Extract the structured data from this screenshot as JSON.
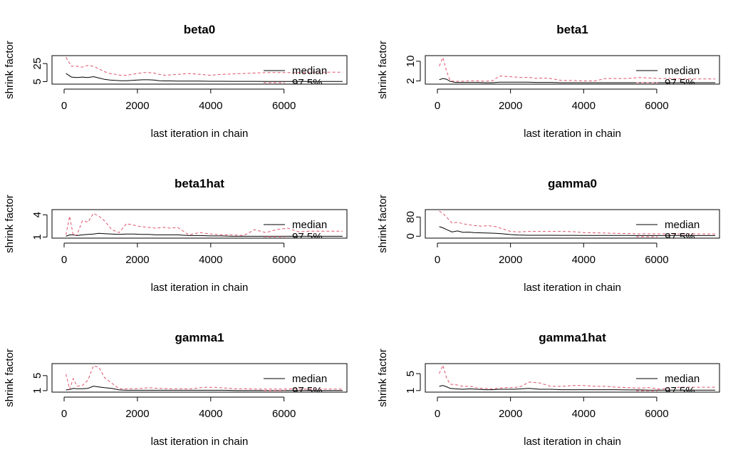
{
  "chart_data": [
    {
      "type": "line",
      "title": "beta0",
      "xlabel": "last iteration in chain",
      "ylabel": "shrink factor",
      "xlim": [
        0,
        7600
      ],
      "ylim": [
        3,
        33
      ],
      "x_ticks": [
        0,
        2000,
        4000,
        6000
      ],
      "y_ticks": [
        5,
        25
      ],
      "legend": {
        "placement": "right",
        "entries": [
          "median",
          "97.5%"
        ]
      },
      "grid": false,
      "series": [
        {
          "name": "median",
          "color": "#000000",
          "dash": "solid",
          "x": [
            50,
            200,
            350,
            500,
            650,
            800,
            950,
            1100,
            1250,
            1400,
            1550,
            1700,
            1850,
            2000,
            2150,
            2300,
            2450,
            2600,
            2750,
            2900,
            3100,
            3400,
            3700,
            4000,
            4300,
            4600,
            4900,
            5200,
            5500,
            5800,
            6100,
            6400,
            6700,
            7000,
            7300,
            7600
          ],
          "y": [
            14,
            10,
            9.5,
            10,
            9.5,
            10.5,
            9,
            7.5,
            6.8,
            6.3,
            6,
            6,
            6.3,
            6.8,
            7,
            7,
            6.8,
            6,
            5.8,
            5.8,
            5.6,
            5.5,
            5.5,
            5.4,
            5.4,
            5.3,
            5.3,
            5.3,
            5.2,
            5.2,
            5.2,
            5.2,
            5.2,
            5.2,
            5.1,
            5.1
          ]
        },
        {
          "name": "97.5%",
          "color": "#DF536B",
          "dash": "dashed",
          "x": [
            50,
            200,
            350,
            500,
            650,
            800,
            950,
            1100,
            1250,
            1400,
            1550,
            1700,
            1850,
            2000,
            2150,
            2300,
            2450,
            2600,
            2750,
            2900,
            3100,
            3400,
            3700,
            4000,
            4300,
            4600,
            4900,
            5200,
            5500,
            5800,
            6100,
            6400,
            6700,
            7000,
            7300,
            7600
          ],
          "y": [
            32,
            22,
            22,
            21,
            23,
            22,
            19,
            16,
            14,
            13,
            12,
            12,
            13,
            14,
            15,
            15,
            14.5,
            13,
            12,
            12.5,
            13,
            14,
            13,
            12,
            13,
            13.5,
            14,
            14.5,
            15,
            15,
            15,
            15,
            15.5,
            15.5,
            15.5,
            15.5
          ]
        }
      ]
    },
    {
      "type": "line",
      "title": "beta1",
      "xlabel": "last iteration in chain",
      "ylabel": "shrink factor",
      "xlim": [
        0,
        7600
      ],
      "ylim": [
        1,
        12
      ],
      "x_ticks": [
        0,
        2000,
        4000,
        6000
      ],
      "y_ticks": [
        2,
        10
      ],
      "legend": {
        "placement": "right",
        "entries": [
          "median",
          "97.5%"
        ]
      },
      "grid": false,
      "series": [
        {
          "name": "median",
          "color": "#000000",
          "dash": "solid",
          "x": [
            50,
            150,
            250,
            350,
            500,
            700,
            900,
            1100,
            1300,
            1500,
            1700,
            1900,
            2100,
            2300,
            2500,
            2700,
            2900,
            3100,
            3400,
            3700,
            4000,
            4300,
            4600,
            4900,
            5200,
            5500,
            5800,
            6100,
            6400,
            6700,
            7000,
            7300,
            7600
          ],
          "y": [
            2.5,
            3,
            2.7,
            1.8,
            1.4,
            1.4,
            1.4,
            1.4,
            1.3,
            1.3,
            1.5,
            1.5,
            1.5,
            1.5,
            1.5,
            1.4,
            1.4,
            1.4,
            1.3,
            1.3,
            1.3,
            1.3,
            1.3,
            1.3,
            1.3,
            1.3,
            1.3,
            1.3,
            1.3,
            1.3,
            1.3,
            1.3,
            1.3
          ]
        },
        {
          "name": "97.5%",
          "color": "#DF536B",
          "dash": "dashed",
          "x": [
            50,
            150,
            250,
            350,
            500,
            700,
            900,
            1100,
            1300,
            1500,
            1700,
            1900,
            2100,
            2300,
            2500,
            2700,
            2900,
            3100,
            3400,
            3700,
            4000,
            4300,
            4600,
            4900,
            5200,
            5500,
            5800,
            6100,
            6400,
            6700,
            7000,
            7300,
            7600
          ],
          "y": [
            8,
            11.5,
            6,
            2,
            1.8,
            1.9,
            2,
            2,
            1.9,
            2,
            4,
            3.8,
            3.6,
            3.4,
            3.5,
            3,
            3.2,
            3,
            2.2,
            2.2,
            2,
            2,
            3,
            3,
            3,
            3.4,
            3.2,
            3,
            3,
            2.8,
            2.8,
            2.8,
            2.8
          ]
        }
      ]
    },
    {
      "type": "line",
      "title": "beta1hat",
      "xlabel": "last iteration in chain",
      "ylabel": "shrink factor",
      "xlim": [
        0,
        7600
      ],
      "ylim": [
        0.95,
        4.6
      ],
      "x_ticks": [
        0,
        2000,
        4000,
        6000
      ],
      "y_ticks": [
        1.0,
        4.0
      ],
      "legend": {
        "placement": "right",
        "entries": [
          "median",
          "97.5%"
        ]
      },
      "grid": false,
      "series": [
        {
          "name": "median",
          "color": "#000000",
          "dash": "solid",
          "x": [
            50,
            150,
            250,
            350,
            500,
            650,
            800,
            950,
            1100,
            1300,
            1500,
            1700,
            1900,
            2100,
            2300,
            2500,
            2700,
            2900,
            3100,
            3400,
            3700,
            4000,
            4300,
            4600,
            4900,
            5200,
            5500,
            5800,
            6100,
            6400,
            6700,
            7000,
            7300,
            7600
          ],
          "y": [
            1.1,
            1.3,
            1.3,
            1.2,
            1.3,
            1.35,
            1.4,
            1.5,
            1.45,
            1.4,
            1.35,
            1.4,
            1.4,
            1.35,
            1.35,
            1.3,
            1.3,
            1.3,
            1.3,
            1.2,
            1.2,
            1.15,
            1.15,
            1.1,
            1.1,
            1.1,
            1.1,
            1.1,
            1.1,
            1.1,
            1.1,
            1.1,
            1.1,
            1.1
          ]
        },
        {
          "name": "97.5%",
          "color": "#DF536B",
          "dash": "dashed",
          "x": [
            50,
            150,
            250,
            350,
            500,
            650,
            800,
            950,
            1100,
            1300,
            1500,
            1700,
            1900,
            2100,
            2300,
            2500,
            2700,
            2900,
            3100,
            3400,
            3700,
            4000,
            4300,
            4600,
            4900,
            5200,
            5500,
            5800,
            6100,
            6400,
            6700,
            7000,
            7300,
            7600
          ],
          "y": [
            1.3,
            3.8,
            1.2,
            1.3,
            3.2,
            3,
            4.2,
            3.8,
            3.2,
            2,
            1.6,
            2.8,
            2.6,
            2.4,
            2.3,
            2.2,
            2.3,
            2.2,
            2.3,
            1.3,
            1.6,
            1.4,
            1.3,
            1.3,
            1.2,
            2,
            1.6,
            2,
            2.2,
            1.7,
            1.8,
            1.8,
            1.8,
            1.8
          ]
        }
      ]
    },
    {
      "type": "line",
      "title": "gamma0",
      "xlabel": "last iteration in chain",
      "ylabel": "shrink factor",
      "xlim": [
        0,
        7600
      ],
      "ylim": [
        -5,
        108
      ],
      "x_ticks": [
        0,
        2000,
        4000,
        6000
      ],
      "y_ticks": [
        0,
        80
      ],
      "legend": {
        "placement": "right",
        "entries": [
          "median",
          "97.5%"
        ]
      },
      "grid": false,
      "series": [
        {
          "name": "median",
          "color": "#000000",
          "dash": "solid",
          "x": [
            50,
            150,
            250,
            400,
            550,
            700,
            850,
            1000,
            1200,
            1400,
            1600,
            1800,
            2000,
            2200,
            2500,
            2800,
            3100,
            3400,
            3700,
            4000,
            4300,
            4600,
            4900,
            5200,
            5500,
            5800,
            6100,
            6400,
            6700,
            7000,
            7300,
            7600
          ],
          "y": [
            40,
            35,
            28,
            18,
            22,
            16,
            17,
            15,
            14,
            13,
            12,
            10,
            7,
            5,
            4,
            4,
            4,
            3.5,
            3.5,
            3.2,
            3,
            3,
            3,
            3,
            2.8,
            2.8,
            2.8,
            2.7,
            2.7,
            2.7,
            2.7,
            2.7
          ]
        },
        {
          "name": "97.5%",
          "color": "#DF536B",
          "dash": "dashed",
          "x": [
            50,
            150,
            250,
            400,
            550,
            700,
            850,
            1000,
            1200,
            1400,
            1600,
            1800,
            2000,
            2200,
            2500,
            2800,
            3100,
            3400,
            3700,
            4000,
            4300,
            4600,
            4900,
            5200,
            5500,
            5800,
            6100,
            6400,
            6700,
            7000,
            7300,
            7600
          ],
          "y": [
            105,
            95,
            80,
            55,
            58,
            52,
            48,
            45,
            42,
            44,
            40,
            30,
            20,
            18,
            20,
            20,
            20,
            20,
            19,
            15,
            14,
            13,
            12,
            11,
            10,
            10,
            10,
            9.5,
            9.5,
            9.5,
            9.5,
            9.5
          ]
        }
      ]
    },
    {
      "type": "line",
      "title": "gamma1",
      "xlabel": "last iteration in chain",
      "ylabel": "shrink factor",
      "xlim": [
        0,
        7600
      ],
      "ylim": [
        0.8,
        8.0
      ],
      "x_ticks": [
        0,
        2000,
        4000,
        6000
      ],
      "y_ticks": [
        1,
        5
      ],
      "legend": {
        "placement": "right",
        "entries": [
          "median",
          "97.5%"
        ]
      },
      "grid": false,
      "series": [
        {
          "name": "median",
          "color": "#000000",
          "dash": "solid",
          "x": [
            50,
            150,
            250,
            350,
            500,
            650,
            800,
            950,
            1100,
            1300,
            1500,
            1700,
            1900,
            2100,
            2300,
            2600,
            2900,
            3200,
            3500,
            3800,
            4100,
            4400,
            4700,
            5000,
            5300,
            5600,
            5900,
            6200,
            6500,
            6800,
            7100,
            7400,
            7600
          ],
          "y": [
            1.2,
            1.3,
            1.6,
            1.5,
            1.5,
            1.6,
            2.2,
            2,
            1.8,
            1.6,
            1.2,
            1.1,
            1.1,
            1.1,
            1.1,
            1.1,
            1.1,
            1.1,
            1.1,
            1.1,
            1.1,
            1.1,
            1.05,
            1.05,
            1.05,
            1.05,
            1.05,
            1.05,
            1.05,
            1.05,
            1.05,
            1.05,
            1.05
          ]
        },
        {
          "name": "97.5%",
          "color": "#DF536B",
          "dash": "dashed",
          "x": [
            50,
            150,
            250,
            350,
            500,
            650,
            800,
            950,
            1100,
            1300,
            1500,
            1700,
            1900,
            2100,
            2300,
            2600,
            2900,
            3200,
            3500,
            3800,
            4100,
            4400,
            4700,
            5000,
            5300,
            5600,
            5900,
            6200,
            6500,
            6800,
            7100,
            7400,
            7600
          ],
          "y": [
            5.4,
            1.4,
            4.2,
            2.2,
            2.4,
            3.8,
            7.6,
            7.2,
            4.5,
            3,
            1.5,
            1.5,
            1.5,
            1.6,
            1.8,
            1.6,
            1.5,
            1.5,
            1.5,
            1.9,
            1.9,
            1.7,
            1.5,
            1.5,
            1.4,
            1.4,
            1.4,
            1.5,
            1.4,
            1.4,
            1.4,
            1.4,
            1.4
          ]
        }
      ]
    },
    {
      "type": "line",
      "title": "gamma1hat",
      "xlabel": "last iteration in chain",
      "ylabel": "shrink factor",
      "xlim": [
        0,
        7600
      ],
      "ylim": [
        0.8,
        7.2
      ],
      "x_ticks": [
        0,
        2000,
        4000,
        6000
      ],
      "y_ticks": [
        1,
        5
      ],
      "legend": {
        "placement": "right",
        "entries": [
          "median",
          "97.5%"
        ]
      },
      "grid": false,
      "series": [
        {
          "name": "median",
          "color": "#000000",
          "dash": "solid",
          "x": [
            50,
            150,
            250,
            350,
            500,
            700,
            900,
            1100,
            1300,
            1500,
            1700,
            1900,
            2100,
            2300,
            2500,
            2800,
            3100,
            3400,
            3700,
            4000,
            4300,
            4600,
            4900,
            5200,
            5500,
            5800,
            6100,
            6400,
            6700,
            7000,
            7300,
            7600
          ],
          "y": [
            2,
            2.2,
            1.9,
            1.5,
            1.4,
            1.3,
            1.4,
            1.3,
            1.2,
            1.2,
            1.3,
            1.3,
            1.3,
            1.4,
            1.5,
            1.3,
            1.3,
            1.2,
            1.2,
            1.2,
            1.2,
            1.2,
            1.2,
            1.15,
            1.15,
            1.1,
            1.1,
            1.1,
            1.1,
            1.1,
            1.1,
            1.1
          ]
        },
        {
          "name": "97.5%",
          "color": "#DF536B",
          "dash": "dashed",
          "x": [
            50,
            150,
            250,
            350,
            500,
            700,
            900,
            1100,
            1300,
            1500,
            1700,
            1900,
            2100,
            2300,
            2500,
            2800,
            3100,
            3400,
            3700,
            4000,
            4300,
            4600,
            4900,
            5200,
            5500,
            5800,
            6100,
            6400,
            6700,
            7000,
            7300,
            7600
          ],
          "y": [
            5,
            7,
            4,
            2.5,
            2.4,
            2,
            2,
            1.6,
            1.5,
            1.4,
            1.6,
            1.7,
            1.7,
            2,
            3,
            2.8,
            2,
            2,
            2.2,
            2.2,
            2,
            2,
            1.8,
            1.7,
            1.6,
            1.7,
            1.3,
            1.7,
            1.8,
            1.8,
            1.8,
            1.8
          ]
        }
      ]
    }
  ]
}
